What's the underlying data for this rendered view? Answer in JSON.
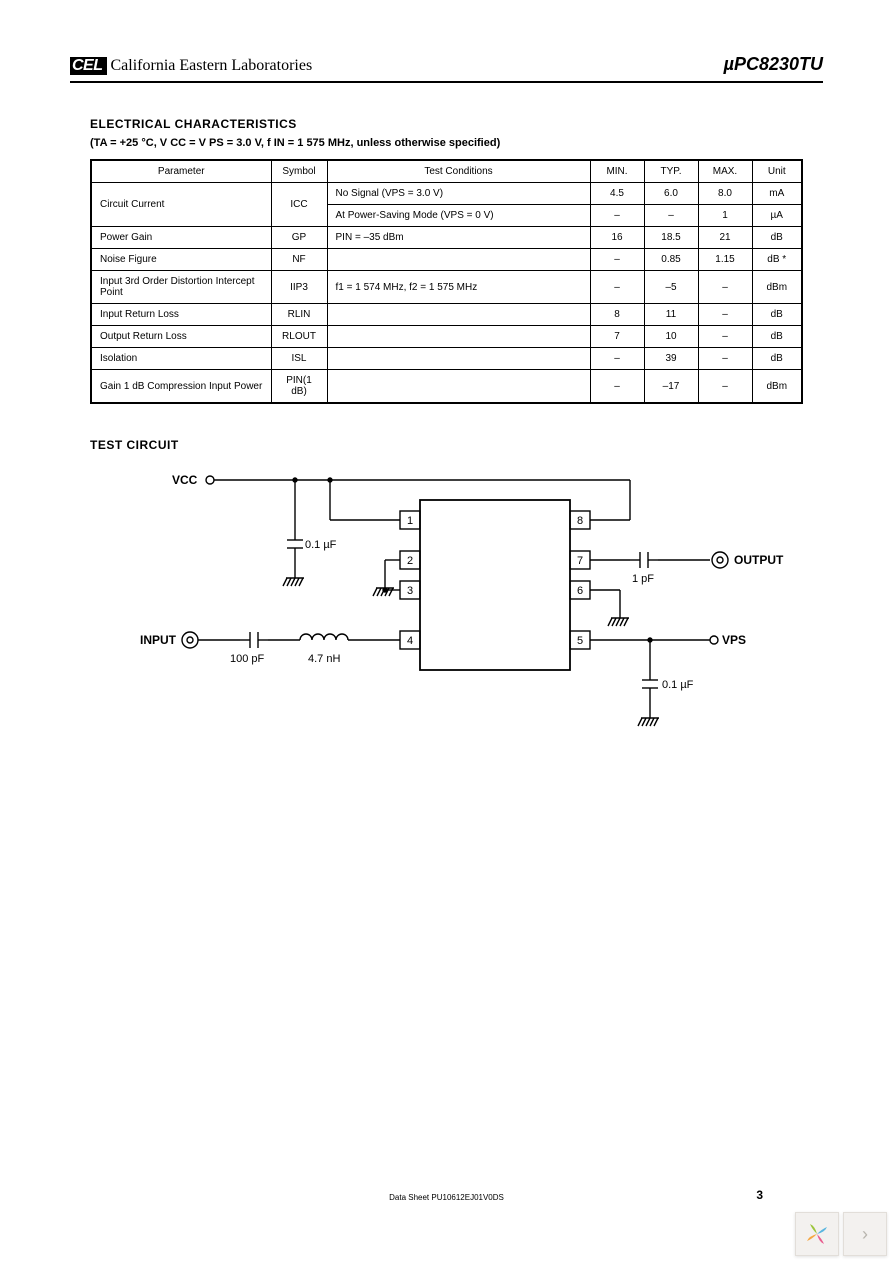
{
  "header": {
    "logo_mark": "CEL",
    "logo_text": "California Eastern Laboratories",
    "part_number": "µPC8230TU"
  },
  "electrical": {
    "title": "ELECTRICAL  CHARACTERISTICS",
    "conditions_line": "(TA = +25 °C, V CC = V PS = 3.0 V, f IN = 1 575 MHz, unless otherwise specified)",
    "columns": [
      "Parameter",
      "Symbol",
      "Test Conditions",
      "MIN.",
      "TYP.",
      "MAX.",
      "Unit"
    ],
    "rows": [
      {
        "param": "Circuit Current",
        "symbol": "ICC",
        "cond": "No Signal (VPS = 3.0 V)",
        "min": "4.5",
        "typ": "6.0",
        "max": "8.0",
        "unit": "mA",
        "rowspan": 2
      },
      {
        "param": "",
        "symbol": "",
        "cond": "At Power-Saving Mode (VPS = 0 V)",
        "min": "–",
        "typ": "–",
        "max": "1",
        "unit": "µA"
      },
      {
        "param": "Power Gain",
        "symbol": "GP",
        "cond": "PIN = –35 dBm",
        "min": "16",
        "typ": "18.5",
        "max": "21",
        "unit": "dB"
      },
      {
        "param": "Noise Figure",
        "symbol": "NF",
        "cond": "",
        "min": "–",
        "typ": "0.85",
        "max": "1.15",
        "unit": "dB *"
      },
      {
        "param": "Input 3rd Order Distortion Intercept Point",
        "symbol": "IIP3",
        "cond": "f1 = 1 574 MHz, f2 = 1 575 MHz",
        "min": "–",
        "typ": "–5",
        "max": "–",
        "unit": "dBm"
      },
      {
        "param": "Input Return Loss",
        "symbol": "RLIN",
        "cond": "",
        "min": "8",
        "typ": "11",
        "max": "–",
        "unit": "dB"
      },
      {
        "param": "Output Return Loss",
        "symbol": "RLOUT",
        "cond": "",
        "min": "7",
        "typ": "10",
        "max": "–",
        "unit": "dB"
      },
      {
        "param": "Isolation",
        "symbol": "ISL",
        "cond": "",
        "min": "–",
        "typ": "39",
        "max": "–",
        "unit": "dB"
      },
      {
        "param": "Gain 1 dB Compression Input Power",
        "symbol": "PIN(1 dB)",
        "cond": "",
        "min": "–",
        "typ": "–17",
        "max": "–",
        "unit": "dBm"
      }
    ]
  },
  "test_circuit": {
    "title": "TEST  CIRCUIT",
    "labels": {
      "vcc": "VCC",
      "input": "INPUT",
      "output": "OUTPUT",
      "vps": "VPS",
      "c1": "0.1 µF",
      "c2": "100 pF",
      "l1": "4.7 nH",
      "c3": "1 pF",
      "c4": "0.1 µF"
    },
    "pins": [
      "1",
      "2",
      "3",
      "4",
      "5",
      "6",
      "7",
      "8"
    ],
    "style": {
      "stroke": "#000000",
      "stroke_width": 1.4,
      "ic_stroke_width": 1.8,
      "font_size_label": 12,
      "font_size_pin": 11,
      "font_size_comp": 11,
      "font_weight_io": "bold"
    }
  },
  "footer": {
    "doc_id": "Data Sheet  PU10612EJ01V0DS",
    "page": "3"
  },
  "nav": {
    "logo_colors": [
      "#9cc53a",
      "#5ab6e0",
      "#f5a742",
      "#e95d8f"
    ]
  }
}
